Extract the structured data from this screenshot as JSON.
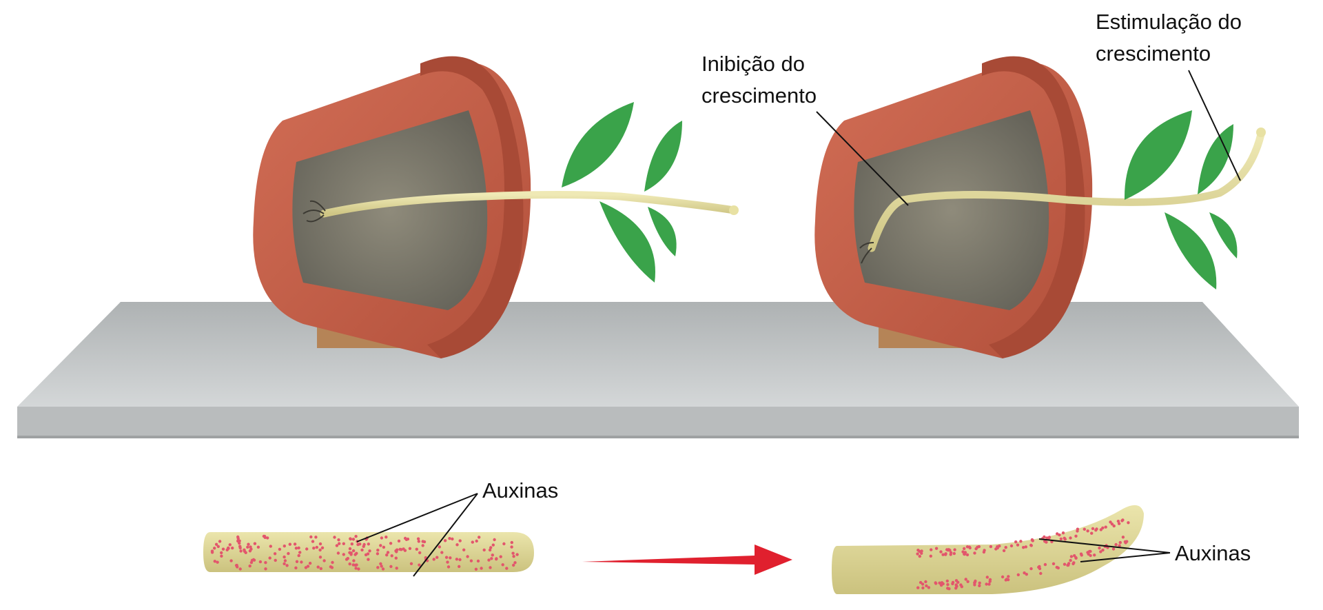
{
  "labels": {
    "inhibition": [
      "Inibição do",
      "crescimento"
    ],
    "stimulation": [
      "Estimulação do",
      "crescimento"
    ],
    "auxins_left": "Auxinas",
    "auxins_right": "Auxinas"
  },
  "colors": {
    "pot": "#c9614a",
    "pot_dark": "#a84a36",
    "soil": "#7d7a6c",
    "stem": "#e4dd9c",
    "leaf": "#3aa34a",
    "table": "#c4c7c8",
    "wood": "#b58457",
    "auxin": "#e2566c",
    "arrow": "#e0202e"
  },
  "icons": {
    "left_pot": "flower-pot-icon",
    "right_pot": "flower-pot-icon",
    "arrow": "red-arrow-icon"
  }
}
